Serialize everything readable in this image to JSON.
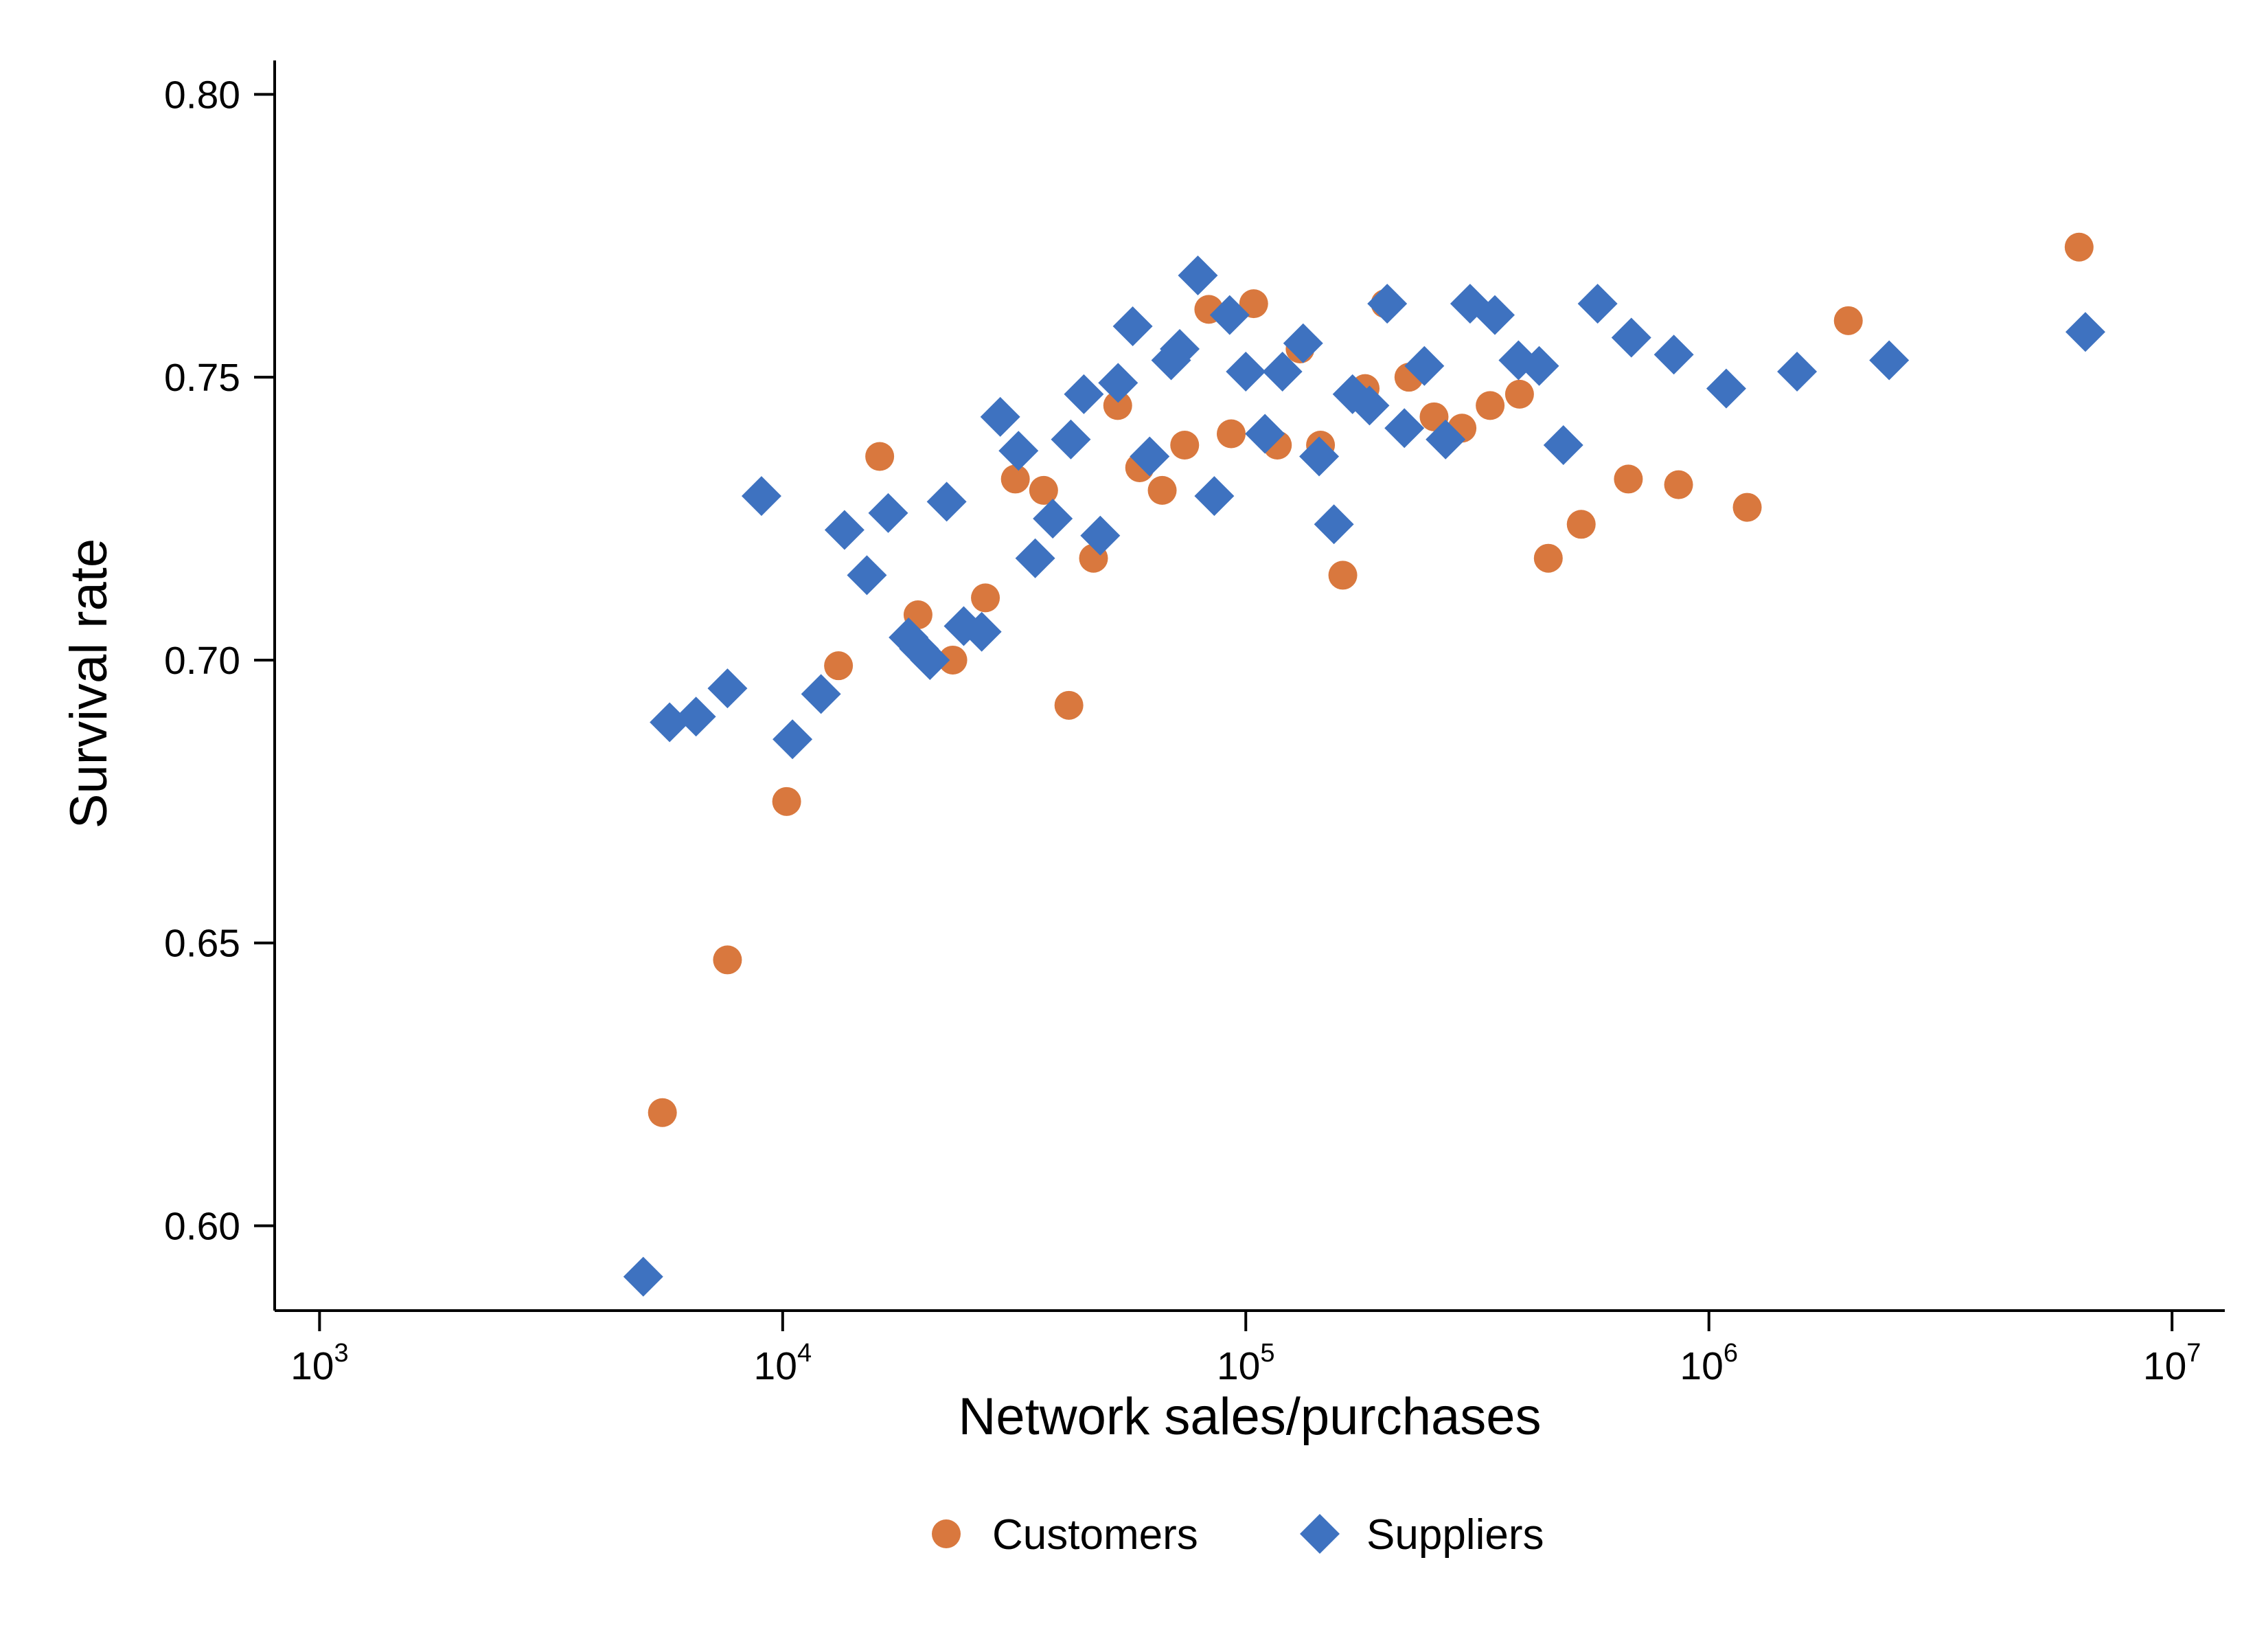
{
  "chart_data": {
    "type": "scatter",
    "title": "",
    "xlabel": "Network sales/purchases",
    "ylabel": "Survival rate",
    "x_scale": "log10",
    "xlim": [
      800,
      13000000
    ],
    "ylim": [
      0.585,
      0.806
    ],
    "x_ticks": [
      {
        "base": "10",
        "exp": "3",
        "value": 1000
      },
      {
        "base": "10",
        "exp": "4",
        "value": 10000
      },
      {
        "base": "10",
        "exp": "5",
        "value": 100000
      },
      {
        "base": "10",
        "exp": "6",
        "value": 1000000
      },
      {
        "base": "10",
        "exp": "7",
        "value": 10000000
      }
    ],
    "y_ticks": [
      {
        "label": "0.60",
        "value": 0.6
      },
      {
        "label": "0.65",
        "value": 0.65
      },
      {
        "label": "0.70",
        "value": 0.7
      },
      {
        "label": "0.75",
        "value": 0.75
      },
      {
        "label": "0.80",
        "value": 0.8
      }
    ],
    "grid": false,
    "legend_position": "bottom",
    "colors": {
      "Customers": "#D9783E",
      "Suppliers": "#3E72C0"
    },
    "series": [
      {
        "name": "Customers",
        "marker": "circle",
        "color": "#D9783E",
        "points": [
          [
            5500,
            0.62
          ],
          [
            7600,
            0.647
          ],
          [
            10200,
            0.675
          ],
          [
            13200,
            0.699
          ],
          [
            16200,
            0.736
          ],
          [
            19600,
            0.708
          ],
          [
            23300,
            0.7
          ],
          [
            27400,
            0.711
          ],
          [
            31800,
            0.732
          ],
          [
            36600,
            0.73
          ],
          [
            41500,
            0.692
          ],
          [
            46900,
            0.718
          ],
          [
            52900,
            0.745
          ],
          [
            59000,
            0.734
          ],
          [
            66000,
            0.73
          ],
          [
            73800,
            0.738
          ],
          [
            83200,
            0.762
          ],
          [
            93000,
            0.74
          ],
          [
            104000,
            0.763
          ],
          [
            117000,
            0.738
          ],
          [
            131000,
            0.755
          ],
          [
            145000,
            0.738
          ],
          [
            162000,
            0.715
          ],
          [
            181000,
            0.748
          ],
          [
            200000,
            0.763
          ],
          [
            225000,
            0.75
          ],
          [
            255000,
            0.743
          ],
          [
            293000,
            0.741
          ],
          [
            337000,
            0.745
          ],
          [
            390000,
            0.747
          ],
          [
            450000,
            0.718
          ],
          [
            530000,
            0.724
          ],
          [
            670000,
            0.732
          ],
          [
            860000,
            0.731
          ],
          [
            1210000,
            0.727
          ],
          [
            2000000,
            0.76
          ],
          [
            6300000,
            0.773
          ]
        ]
      },
      {
        "name": "Suppliers",
        "marker": "diamond",
        "color": "#3E72C0",
        "points": [
          [
            5000,
            0.591
          ],
          [
            5700,
            0.689
          ],
          [
            6500,
            0.69
          ],
          [
            7600,
            0.695
          ],
          [
            9000,
            0.729
          ],
          [
            10500,
            0.686
          ],
          [
            12100,
            0.694
          ],
          [
            13600,
            0.723
          ],
          [
            15200,
            0.715
          ],
          [
            16900,
            0.726
          ],
          [
            18700,
            0.704
          ],
          [
            19700,
            0.702
          ],
          [
            20800,
            0.7
          ],
          [
            22600,
            0.728
          ],
          [
            24600,
            0.706
          ],
          [
            26900,
            0.705
          ],
          [
            29500,
            0.743
          ],
          [
            32300,
            0.737
          ],
          [
            35100,
            0.718
          ],
          [
            38300,
            0.725
          ],
          [
            41900,
            0.739
          ],
          [
            44700,
            0.747
          ],
          [
            48500,
            0.722
          ],
          [
            53000,
            0.749
          ],
          [
            57000,
            0.759
          ],
          [
            62000,
            0.736
          ],
          [
            69000,
            0.753
          ],
          [
            72000,
            0.755
          ],
          [
            78800,
            0.768
          ],
          [
            85500,
            0.729
          ],
          [
            92300,
            0.761
          ],
          [
            100000,
            0.751
          ],
          [
            110000,
            0.74
          ],
          [
            120000,
            0.751
          ],
          [
            133000,
            0.756
          ],
          [
            144000,
            0.736
          ],
          [
            155000,
            0.724
          ],
          [
            170000,
            0.747
          ],
          [
            185000,
            0.745
          ],
          [
            202000,
            0.763
          ],
          [
            220000,
            0.741
          ],
          [
            243000,
            0.752
          ],
          [
            270000,
            0.739
          ],
          [
            305000,
            0.763
          ],
          [
            345000,
            0.761
          ],
          [
            388000,
            0.753
          ],
          [
            430000,
            0.752
          ],
          [
            485000,
            0.738
          ],
          [
            575000,
            0.763
          ],
          [
            680000,
            0.757
          ],
          [
            840000,
            0.754
          ],
          [
            1090000,
            0.748
          ],
          [
            1550000,
            0.751
          ],
          [
            2450000,
            0.753
          ],
          [
            6500000,
            0.758
          ]
        ]
      }
    ]
  }
}
